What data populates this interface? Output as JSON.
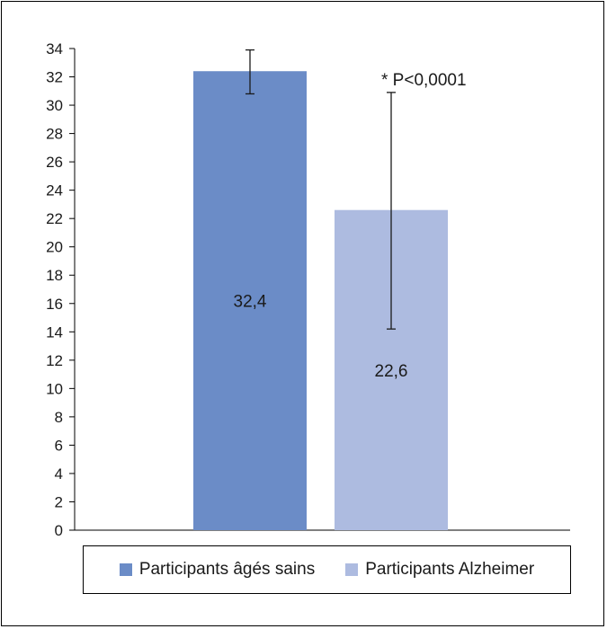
{
  "chart_data": {
    "type": "bar",
    "categories": [
      "Participants âgés sains",
      "Participants Alzheimer"
    ],
    "values": [
      32.4,
      22.6
    ],
    "value_labels": [
      "32,4",
      "22,6"
    ],
    "error_bars": [
      {
        "lower": 30.8,
        "upper": 33.9
      },
      {
        "lower": 14.2,
        "upper": 30.9
      }
    ],
    "colors": [
      "#6b8cc7",
      "#adbbe0"
    ],
    "annotation": "* P<0,0001",
    "ylim": [
      0,
      34
    ],
    "yticks": [
      "0",
      "2",
      "4",
      "6",
      "8",
      "10",
      "12",
      "14",
      "16",
      "18",
      "20",
      "22",
      "24",
      "26",
      "28",
      "30",
      "32",
      "34"
    ],
    "legend": {
      "position": "bottom",
      "entries": [
        "Participants âgés sains",
        "Participants Alzheimer"
      ]
    },
    "title": "",
    "xlabel": "",
    "ylabel": "",
    "grid": false
  }
}
